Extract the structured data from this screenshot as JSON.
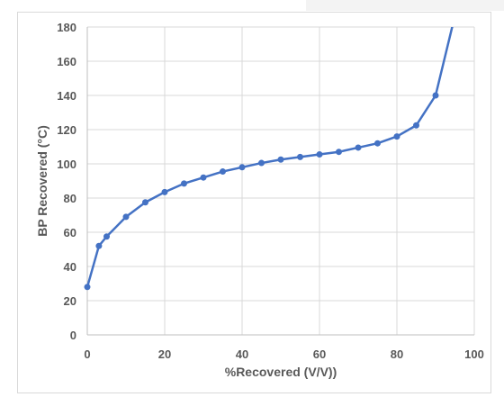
{
  "chart_data": {
    "type": "line",
    "title": "",
    "xlabel": "%Recovered (V/V))",
    "ylabel": "BP Recovered (°C)",
    "xlim": [
      0,
      100
    ],
    "ylim": [
      0,
      180
    ],
    "x_ticks": [
      0,
      20,
      40,
      60,
      80,
      100
    ],
    "y_ticks": [
      0,
      20,
      40,
      60,
      80,
      100,
      120,
      140,
      160,
      180
    ],
    "x_tick_labels": [
      "0",
      "20",
      "40",
      "60",
      "80",
      "100"
    ],
    "y_tick_labels": [
      "0",
      "20",
      "40",
      "60",
      "80",
      "100",
      "120",
      "140",
      "160",
      "180"
    ],
    "grid": true,
    "legend": "none",
    "series": [
      {
        "color": "#4472c4",
        "points": [
          [
            0,
            28
          ],
          [
            3,
            52
          ],
          [
            5,
            57.5
          ],
          [
            10,
            69
          ],
          [
            15,
            77.5
          ],
          [
            20,
            83.5
          ],
          [
            25,
            88.5
          ],
          [
            30,
            92
          ],
          [
            35,
            95.5
          ],
          [
            40,
            98
          ],
          [
            45,
            100.5
          ],
          [
            50,
            102.5
          ],
          [
            55,
            104
          ],
          [
            60,
            105.5
          ],
          [
            65,
            107
          ],
          [
            70,
            109.5
          ],
          [
            75,
            112
          ],
          [
            80,
            116
          ],
          [
            85,
            122.5
          ],
          [
            90,
            140
          ]
        ],
        "line_extension": [
          [
            94.5,
            182
          ]
        ]
      }
    ]
  }
}
